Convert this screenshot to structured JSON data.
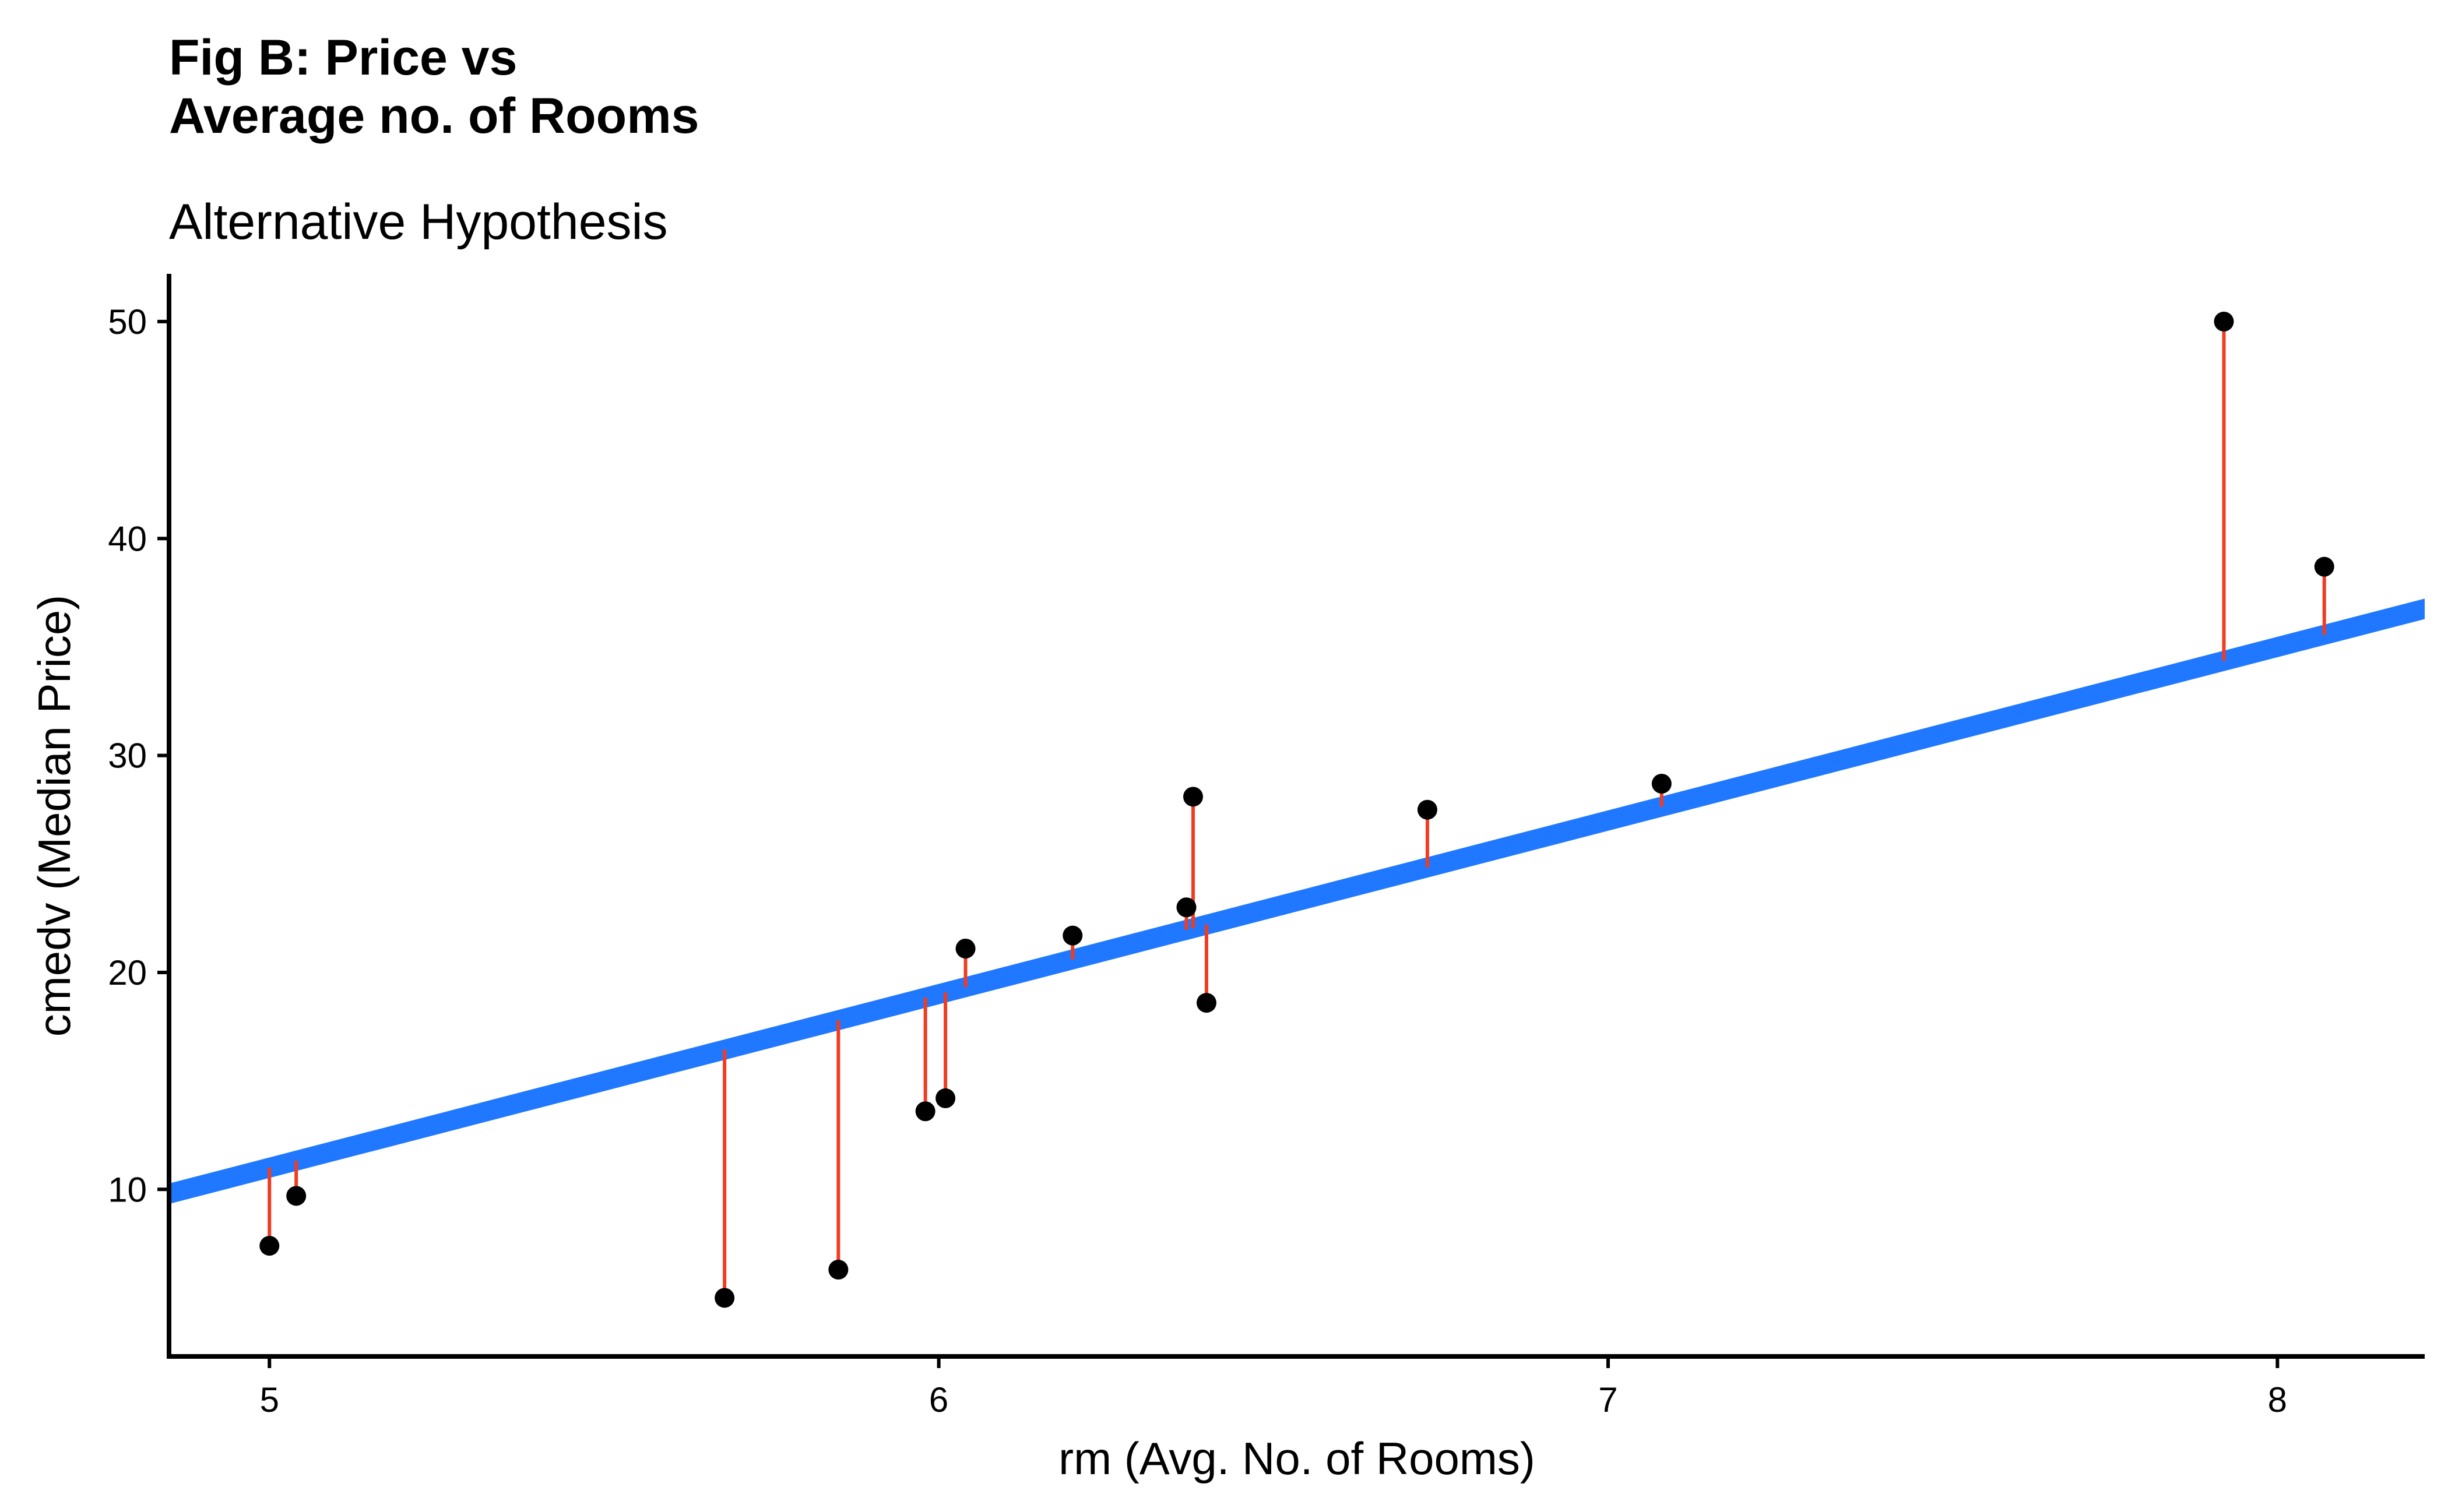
{
  "chart_data": {
    "type": "scatter",
    "title_lines": [
      "Fig B: Price vs",
      "Average no. of Rooms"
    ],
    "subtitle": "Alternative Hypothesis",
    "xlabel": "rm (Avg. No. of Rooms)",
    "ylabel": "cmedv (Median Price)",
    "xlim": [
      4.85,
      8.22
    ],
    "ylim": [
      2.3,
      52.2
    ],
    "x_ticks": [
      5,
      6,
      7,
      8
    ],
    "y_ticks": [
      10,
      20,
      30,
      40,
      50
    ],
    "grid": false,
    "fit_line": {
      "intercept": -29.0,
      "slope": 8.0
    },
    "points": [
      {
        "x": 5.0,
        "y": 7.4
      },
      {
        "x": 5.04,
        "y": 9.7
      },
      {
        "x": 5.68,
        "y": 5.0
      },
      {
        "x": 5.85,
        "y": 6.3
      },
      {
        "x": 5.98,
        "y": 13.6
      },
      {
        "x": 6.01,
        "y": 14.2
      },
      {
        "x": 6.04,
        "y": 21.1
      },
      {
        "x": 6.2,
        "y": 21.7
      },
      {
        "x": 6.37,
        "y": 23.0
      },
      {
        "x": 6.38,
        "y": 28.1
      },
      {
        "x": 6.4,
        "y": 18.6
      },
      {
        "x": 6.73,
        "y": 27.5
      },
      {
        "x": 7.08,
        "y": 28.7
      },
      {
        "x": 7.92,
        "y": 50.0
      },
      {
        "x": 8.07,
        "y": 38.7
      }
    ],
    "colors": {
      "fit_line": "#1f78ff",
      "residual": "#f03c20",
      "point": "#000000",
      "axis": "#000000"
    }
  }
}
